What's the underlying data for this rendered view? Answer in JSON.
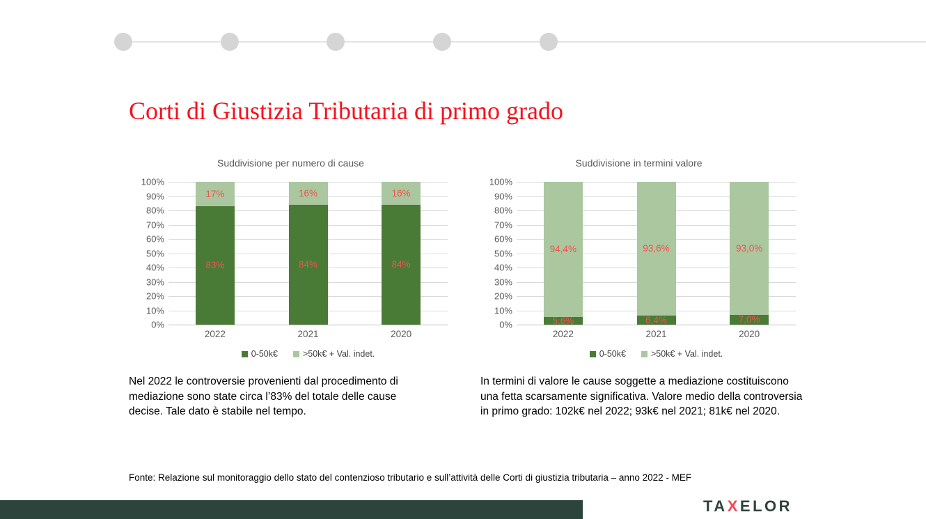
{
  "slide": {
    "title": "Corti di Giustizia Tributaria di primo grado",
    "progress_dot_count": 5,
    "left_note": "Nel 2022 le controversie provenienti dal procedimento di mediazione sono state circa l’83% del totale delle cause decise. Tale dato è stabile nel tempo.",
    "right_note": "In termini di valore le cause soggette a mediazione costituiscono una fetta scarsamente significativa. Valore medio della controversia in primo grado: 102k€ nel 2022; 93k€ nel 2021; 81k€ nel 2020.",
    "footer_source": "Fonte: Relazione sul monitoraggio dello stato del contenzioso tributario e sull’attività delle Corti di giustizia tributaria – anno 2022 - MEF",
    "logo": {
      "pre": "TA",
      "x": "X",
      "post": "ELOR"
    }
  },
  "colors": {
    "title_red": "#f5121d",
    "label_red": "#ef5350",
    "dark_green": "#4a7b36",
    "light_green": "#aac79f",
    "footer_bar": "#2d443c",
    "logo_x_red": "#ef4b53",
    "chart_text_gray": "#595959",
    "gridline_gray": "#d9d9d9",
    "dot_gray": "#d5d5d5"
  },
  "chart_data": [
    {
      "type": "bar",
      "stacked": true,
      "title": "Suddivisione per numero di cause",
      "categories": [
        "2022",
        "2021",
        "2020"
      ],
      "series": [
        {
          "name": "0-50k€",
          "color": "#4a7b36",
          "values": [
            83,
            84,
            84
          ],
          "labels": [
            "83%",
            "84%",
            "84%"
          ]
        },
        {
          "name": ">50k€ + Val. indet.",
          "color": "#aac79f",
          "values": [
            17,
            16,
            16
          ],
          "labels": [
            "17%",
            "16%",
            "16%"
          ]
        }
      ],
      "ylim": [
        0,
        100
      ],
      "yticks": [
        "100%",
        "90%",
        "80%",
        "70%",
        "60%",
        "50%",
        "40%",
        "30%",
        "20%",
        "10%",
        "0%"
      ],
      "grid": true,
      "legend_position": "bottom",
      "data_label_color": "#ef5350"
    },
    {
      "type": "bar",
      "stacked": true,
      "title": "Suddivisione in termini valore",
      "categories": [
        "2022",
        "2021",
        "2020"
      ],
      "series": [
        {
          "name": "0-50k€",
          "color": "#4a7b36",
          "values": [
            5.6,
            6.4,
            7.0
          ],
          "labels": [
            "5,6%",
            "6,4%",
            "7,0%"
          ]
        },
        {
          "name": ">50k€ + Val. indet.",
          "color": "#aac79f",
          "values": [
            94.4,
            93.6,
            93.0
          ],
          "labels": [
            "94,4%",
            "93,6%",
            "93,0%"
          ]
        }
      ],
      "ylim": [
        0,
        100
      ],
      "yticks": [
        "100%",
        "90%",
        "80%",
        "70%",
        "60%",
        "50%",
        "40%",
        "30%",
        "20%",
        "10%",
        "0%"
      ],
      "grid": true,
      "legend_position": "bottom",
      "data_label_color": "#ef5350"
    }
  ]
}
